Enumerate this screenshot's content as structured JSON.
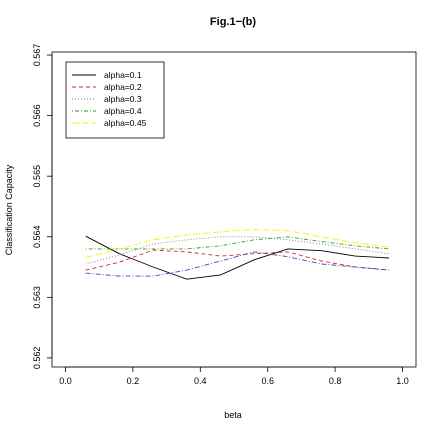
{
  "chart_data": {
    "type": "line",
    "title": "Fig.1−(b)",
    "xlabel": "beta",
    "ylabel": "Classification Capacity",
    "xlim": [
      -0.04,
      1.04
    ],
    "ylim": [
      0.56185,
      0.56705
    ],
    "xticks": [
      0.0,
      0.2,
      0.4,
      0.6,
      0.8,
      1.0
    ],
    "xtick_labels": [
      "0.0",
      "0.2",
      "0.4",
      "0.6",
      "0.8",
      "1.0"
    ],
    "yticks": [
      0.562,
      0.563,
      0.564,
      0.565,
      0.566,
      0.567
    ],
    "ytick_labels": [
      "0.562",
      "0.563",
      "0.564",
      "0.565",
      "0.566",
      "0.567"
    ],
    "grid": false,
    "legend_position": "top-left",
    "x": [
      0.06,
      0.16,
      0.26,
      0.36,
      0.46,
      0.56,
      0.66,
      0.76,
      0.86,
      0.96
    ],
    "series": [
      {
        "name": "alpha=0.1",
        "color": "#000000",
        "dash": "solid",
        "values": [
          0.56401,
          0.56372,
          0.5635,
          0.5633,
          0.56337,
          0.56362,
          0.5638,
          0.56377,
          0.56368,
          0.56365
        ]
      },
      {
        "name": "alpha=0.2",
        "color": "#d62728",
        "dash": "dashed",
        "values": [
          0.56345,
          0.56358,
          0.56378,
          0.56375,
          0.56368,
          0.56372,
          0.56375,
          0.5636,
          0.5635,
          0.56345
        ]
      },
      {
        "name": "alpha=0.3",
        "color": "#7f7f7f",
        "dash": "dotted",
        "values": [
          0.56355,
          0.5637,
          0.56388,
          0.56395,
          0.564,
          0.564,
          0.56395,
          0.56388,
          0.5638,
          0.56372
        ]
      },
      {
        "name": "alpha=0.4",
        "color": "#2ca02c",
        "dash": "dotdash",
        "values": [
          0.5638,
          0.5638,
          0.5638,
          0.5638,
          0.56385,
          0.56395,
          0.564,
          0.56392,
          0.56385,
          0.5638
        ]
      },
      {
        "name": "alpha=0.45",
        "color": "#f5f500",
        "dash": "longdash",
        "values": [
          0.56366,
          0.5638,
          0.56395,
          0.56403,
          0.56408,
          0.56412,
          0.5641,
          0.564,
          0.5639,
          0.56383
        ]
      },
      {
        "name": "",
        "color": "#3b4cc0",
        "dash": "dashdot2",
        "values": [
          0.5634,
          0.56335,
          0.56335,
          0.56345,
          0.5636,
          0.56375,
          0.56367,
          0.56355,
          0.5635,
          0.56345
        ]
      }
    ]
  }
}
